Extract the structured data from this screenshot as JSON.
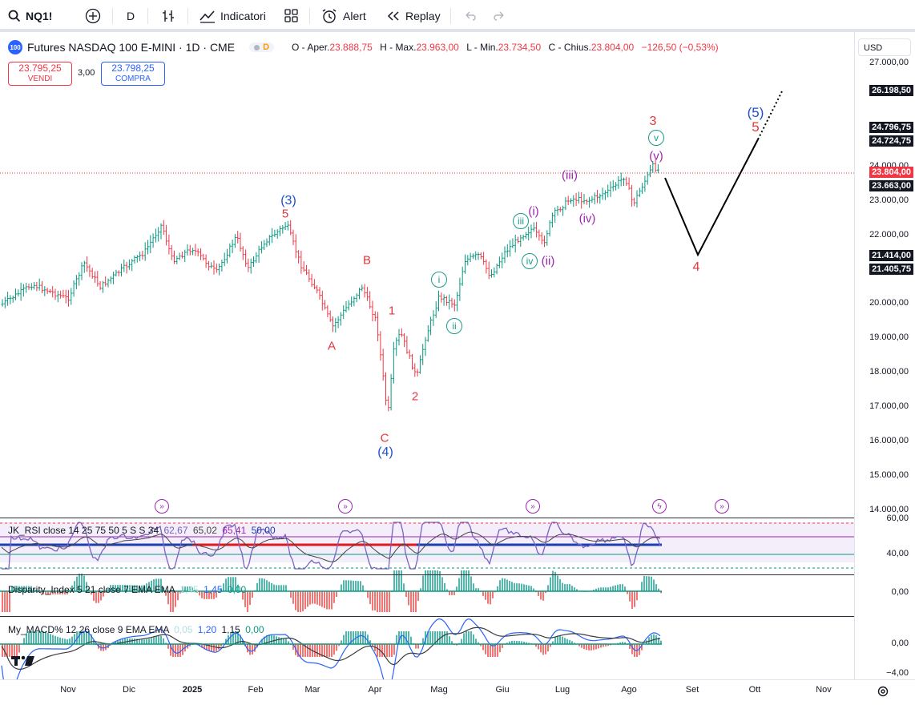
{
  "toolbar": {
    "symbol": "NQ1!",
    "interval": "D",
    "indicators_label": "Indicatori",
    "alert_label": "Alert",
    "replay_label": "Replay"
  },
  "legend": {
    "title": "Futures NASDAQ 100 E-MINI · 1D · CME",
    "badge": "100",
    "d_badge": "D",
    "o_label": "O - Aper.",
    "o_value": "23.888,75",
    "h_label": "H - Max.",
    "h_value": "23.963,00",
    "l_label": "L - Min.",
    "l_value": "23.734,50",
    "c_label": "C - Chius.",
    "c_value": "23.804,00",
    "change": "−126,50 (−0,53%)",
    "sell_price": "23.795,25",
    "sell_label": "VENDI",
    "spread": "3,00",
    "buy_price": "23.798,25",
    "buy_label": "COMPRA"
  },
  "price_axis": {
    "currency": "USD",
    "ticks": [
      "27.000,00",
      "24.000,00",
      "23.000,00",
      "22.000,00",
      "20.000,00",
      "19.000,00",
      "18.000,00",
      "17.000,00",
      "16.000,00",
      "15.000,00",
      "14.000,00"
    ],
    "tags": [
      {
        "text": "26.198,50",
        "color": "#131722"
      },
      {
        "text": "24.796,75",
        "color": "#131722"
      },
      {
        "text": "24.724,75",
        "color": "#131722"
      },
      {
        "text": "23.804,00",
        "color": "#f23645"
      },
      {
        "text": "23.663,00",
        "color": "#131722"
      },
      {
        "text": "21.414,00",
        "color": "#131722"
      },
      {
        "text": "21.405,75",
        "color": "#131722"
      }
    ]
  },
  "time_axis": {
    "labels": [
      "Nov",
      "Dic",
      "2025",
      "Feb",
      "Mar",
      "Apr",
      "Mag",
      "Giu",
      "Lug",
      "Ago",
      "Set",
      "Ott",
      "Nov"
    ]
  },
  "waves": [
    {
      "text": "(3)",
      "color": "#1e4fc9"
    },
    {
      "text": "5",
      "color": "#e0373f"
    },
    {
      "text": "B",
      "color": "#e0373f"
    },
    {
      "text": "A",
      "color": "#e0373f"
    },
    {
      "text": "1",
      "color": "#e0373f"
    },
    {
      "text": "2",
      "color": "#e0373f"
    },
    {
      "text": "C",
      "color": "#e0373f"
    },
    {
      "text": "(4)",
      "color": "#1e4fc9"
    },
    {
      "text": "i",
      "color": "#1a9c8c"
    },
    {
      "text": "ii",
      "color": "#1a9c8c"
    },
    {
      "text": "iii",
      "color": "#1a9c8c"
    },
    {
      "text": "iv",
      "color": "#1a9c8c"
    },
    {
      "text": "(i)",
      "color": "#9c27b0"
    },
    {
      "text": "(ii)",
      "color": "#9c27b0"
    },
    {
      "text": "(iii)",
      "color": "#9c27b0"
    },
    {
      "text": "(iv)",
      "color": "#9c27b0"
    },
    {
      "text": "(v)",
      "color": "#9c27b0"
    },
    {
      "text": "v",
      "color": "#1a9c8c"
    },
    {
      "text": "3",
      "color": "#e0373f"
    },
    {
      "text": "4",
      "color": "#e0373f"
    },
    {
      "text": "(5)",
      "color": "#1e4fc9"
    },
    {
      "text": "5",
      "color": "#e0373f"
    }
  ],
  "indicators": {
    "rsi": {
      "name": "JK_RSI close 14 25 75 50 5 S S 34",
      "v1": "62,67",
      "v2": "65,02",
      "v3": "65,41",
      "v4": "50,00",
      "axis": [
        "60,00",
        "40,00"
      ]
    },
    "disparity": {
      "name": "Disparity_Index 5 21 close 7 EMA EMA",
      "v1": "1,45",
      "v2": "1,45",
      "v3": "0,00",
      "axis": [
        "0,00"
      ]
    },
    "macd": {
      "name": "My_MACD% 12 26 close 9 EMA EMA",
      "v1": "0,05",
      "v2": "1,20",
      "v3": "1,15",
      "v4": "0,00",
      "axis": [
        "0,00",
        "−4,00"
      ]
    }
  },
  "colors": {
    "up": "#089981",
    "down": "#f23645",
    "red_wave": "#e0373f",
    "blue_wave": "#1e4fc9",
    "teal_wave": "#1a9c8c",
    "purple_wave": "#9c27b0"
  }
}
